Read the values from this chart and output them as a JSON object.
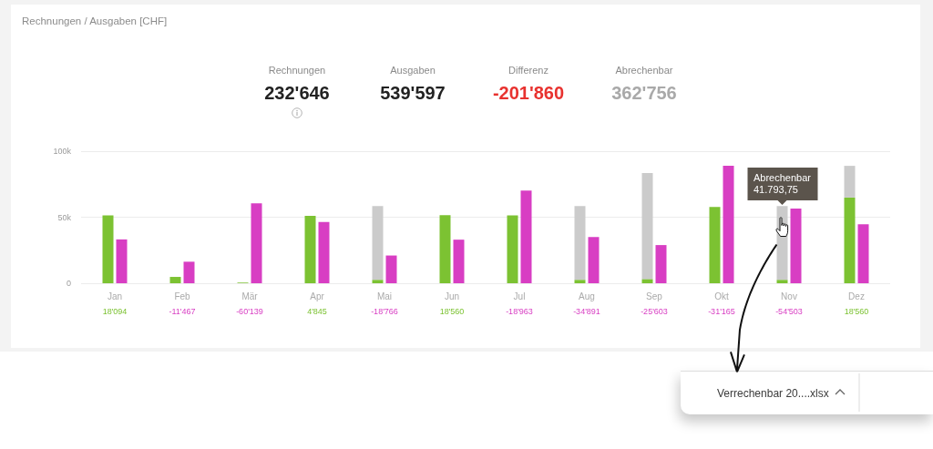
{
  "chart_data": {
    "type": "bar",
    "title": "Rechnungen / Ausgaben [CHF]",
    "categories": [
      "Jan",
      "Feb",
      "Mär",
      "Apr",
      "Mai",
      "Jun",
      "Jul",
      "Aug",
      "Sep",
      "Okt",
      "Nov",
      "Dez"
    ],
    "series": [
      {
        "color": "#7cc232",
        "values": [
          51300,
          4800,
          500,
          51100,
          2500,
          51500,
          51300,
          2500,
          3000,
          57800,
          2500,
          64900
        ]
      },
      {
        "color": "#cbcbcb",
        "base": [
          null,
          null,
          null,
          null,
          2500,
          null,
          null,
          2500,
          3000,
          null,
          2500,
          64900
        ],
        "values": [
          null,
          null,
          null,
          null,
          56000,
          null,
          null,
          56000,
          80500,
          null,
          56000,
          24000
        ]
      },
      {
        "color": "#d83ec3",
        "values": [
          33200,
          16300,
          60600,
          46300,
          21000,
          33000,
          70200,
          35000,
          28900,
          89000,
          56600,
          44700
        ]
      }
    ],
    "ylim": [
      0,
      100000
    ],
    "yticks": [
      0,
      {
        "value": 50000,
        "label": "50k"
      },
      {
        "value": 100000,
        "label": "100k"
      }
    ],
    "grid": "y",
    "annotations": [
      "Rechnungen",
      "232'646",
      "Ausgaben",
      "539'597",
      "Differenz",
      "-201'860",
      "Abrechenbar",
      "362'756",
      {
        "text": "Abrechenbar\n41.793,75",
        "x": "Nov",
        "y": 58500
      },
      "18'094",
      "-11'467",
      "-60'139",
      "4'845",
      "-18'766",
      "18'560",
      "-18'963",
      "-34'891",
      "-25'603",
      "-31'165",
      "-54'503",
      "18'560",
      "Verrechenbar 20....xlsx"
    ]
  }
}
